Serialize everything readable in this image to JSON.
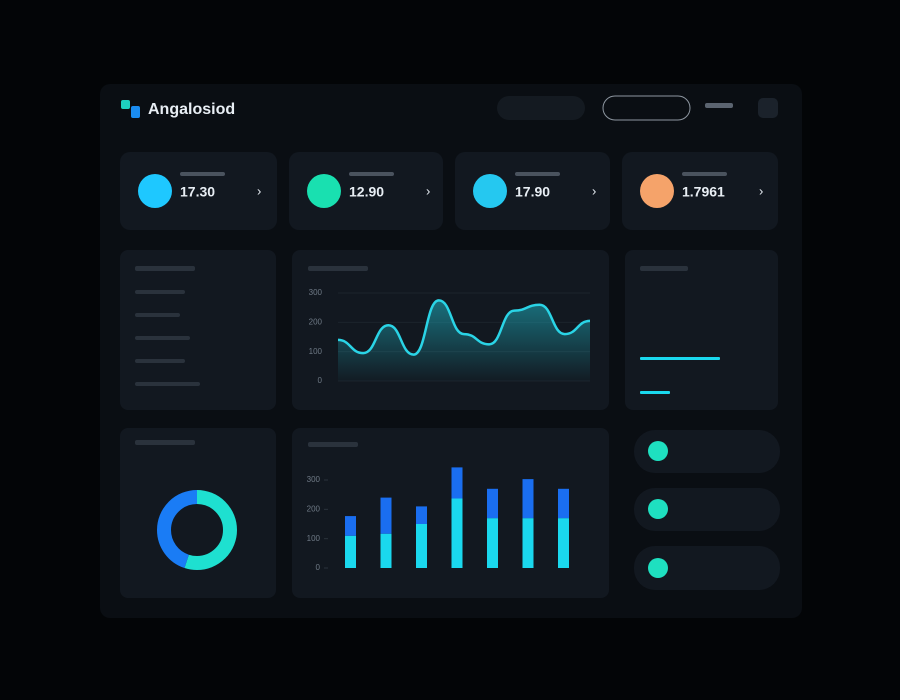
{
  "header": {
    "title": "Angalosiod"
  },
  "stats": [
    {
      "value": "17.30",
      "color": "#1ec8ff"
    },
    {
      "value": "12.90",
      "color": "#19e0b0"
    },
    {
      "value": "17.90",
      "color": "#25c8f0"
    },
    {
      "value": "1.7961",
      "color": "#f5a36a"
    }
  ],
  "line_chart": {
    "type": "line",
    "color": "#2ad4e6",
    "values": [
      140,
      95,
      190,
      90,
      275,
      160,
      125,
      240,
      260,
      160,
      205
    ],
    "ylim": [
      0,
      300
    ],
    "yticks": [
      0,
      100,
      200,
      300
    ],
    "grid": true
  },
  "bar_chart": {
    "type": "bar",
    "series": [
      {
        "color": "#1ad8ee",
        "values": [
          110,
          117,
          150,
          237,
          170,
          170,
          170
        ]
      },
      {
        "color": "#1a6ef0",
        "values": [
          67,
          123,
          60,
          106,
          100,
          133,
          100
        ]
      }
    ],
    "ylim": [
      0,
      350
    ],
    "yticks": [
      0,
      100,
      200,
      300
    ]
  },
  "donut": {
    "type": "pie",
    "values": [
      55,
      45
    ],
    "colors": [
      "#1ee0d0",
      "#1a7cf5"
    ]
  }
}
